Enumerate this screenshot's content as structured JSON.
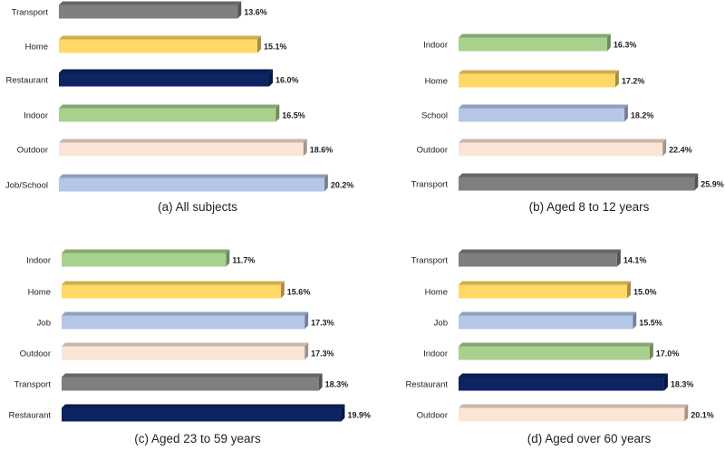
{
  "colors": {
    "Transport": "#7f7f7f",
    "Home": "#ffd966",
    "Restaurant": "#0d2463",
    "Indoor": "#a9d18e",
    "Outdoor": "#fbe5d6",
    "Job/School": "#b4c7e7",
    "School": "#b4c7e7",
    "Job": "#b4c7e7"
  },
  "chart_data": [
    {
      "type": "bar",
      "orientation": "horizontal",
      "title": "(a) All subjects",
      "categories": [
        "Transport",
        "Home",
        "Restaurant",
        "Indoor",
        "Outdoor",
        "Job/School"
      ],
      "values": [
        13.6,
        15.1,
        16.0,
        16.5,
        18.6,
        20.2
      ],
      "labels": [
        "13.6%",
        "15.1%",
        "16.0%",
        "16.5%",
        "18.6%",
        "20.2%"
      ]
    },
    {
      "type": "bar",
      "orientation": "horizontal",
      "title": "(b) Aged 8 to 12 years",
      "categories": [
        "Indoor",
        "Home",
        "School",
        "Outdoor",
        "Transport"
      ],
      "values": [
        16.3,
        17.2,
        18.2,
        22.4,
        25.9
      ],
      "labels": [
        "16.3%",
        "17.2%",
        "18.2%",
        "22.4%",
        "25.9%"
      ]
    },
    {
      "type": "bar",
      "orientation": "horizontal",
      "title": "(c) Aged 23 to 59 years",
      "categories": [
        "Indoor",
        "Home",
        "Job",
        "Outdoor",
        "Transport",
        "Restaurant"
      ],
      "values": [
        11.7,
        15.6,
        17.3,
        17.3,
        18.3,
        19.9
      ],
      "labels": [
        "11.7%",
        "15.6%",
        "17.3%",
        "17.3%",
        "18.3%",
        "19.9%"
      ]
    },
    {
      "type": "bar",
      "orientation": "horizontal",
      "title": "(d) Aged over 60 years",
      "categories": [
        "Transport",
        "Home",
        "Job",
        "Indoor",
        "Restaurant",
        "Outdoor"
      ],
      "values": [
        14.1,
        15.0,
        15.5,
        17.0,
        18.3,
        20.1
      ],
      "labels": [
        "14.1%",
        "15.0%",
        "15.5%",
        "17.0%",
        "18.3%",
        "20.1%"
      ]
    }
  ]
}
